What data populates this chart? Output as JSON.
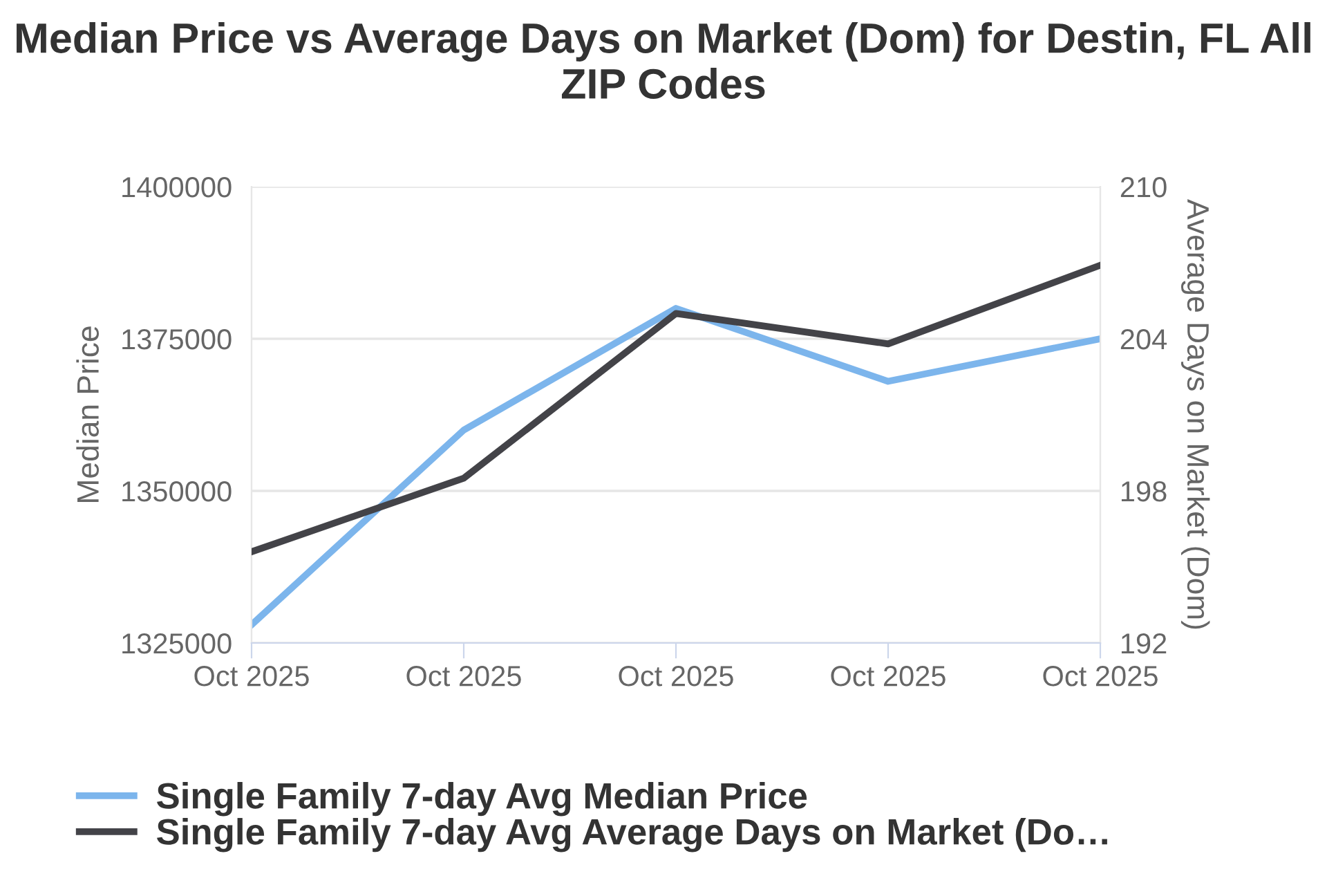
{
  "chart_data": {
    "type": "line",
    "title": "Median Price vs Average Days on Market (Dom) for Destin, FL All ZIP Codes",
    "categories": [
      "Oct 2025",
      "Oct 2025",
      "Oct 2025",
      "Oct 2025",
      "Oct 2025"
    ],
    "ylabel": "Median Price",
    "y2label": "Average Days on Market (Dom)",
    "series": [
      {
        "name": "Single Family 7-day Avg Median Price",
        "color": "#7cb5ec",
        "values": [
          1328000,
          1360000,
          1380000,
          1368000,
          1375000
        ]
      },
      {
        "name": "Single Family 7-day Avg Average Days on Market (Do…",
        "color": "#434348",
        "axis": "y2",
        "values": [
          195.6,
          198.5,
          205.0,
          203.8,
          206.9
        ]
      }
    ],
    "ylim": [
      1325000,
      1400000
    ],
    "yticks": [
      1325000,
      1350000,
      1375000,
      1400000
    ],
    "y2lim": [
      192,
      210
    ],
    "y2ticks": [
      192,
      198,
      204,
      210
    ],
    "grid": "y",
    "legend": "bottom",
    "marker": "none",
    "line_style": "solid"
  }
}
